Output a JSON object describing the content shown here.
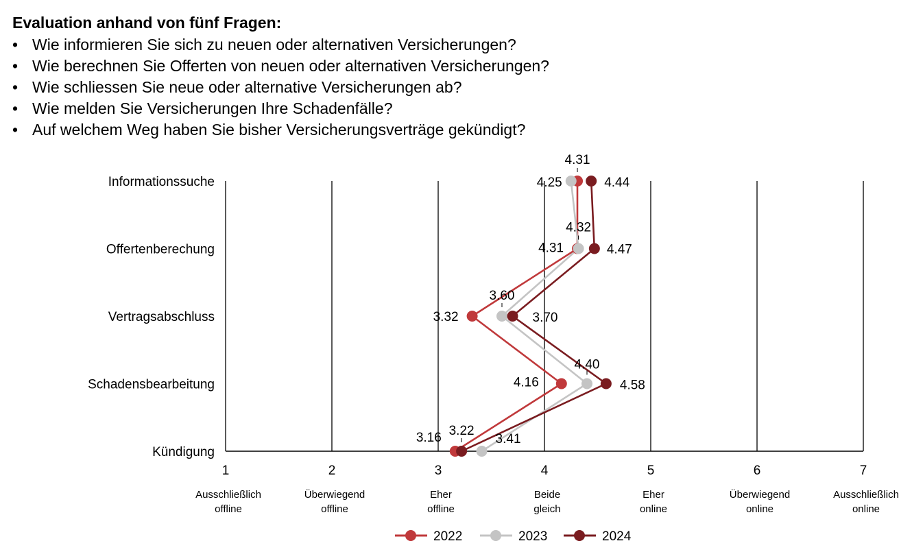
{
  "header": {
    "title": "Evaluation anhand von fünf Fragen:",
    "bullet_glyph": "•",
    "questions": [
      "Wie informieren Sie sich zu neuen oder alternativen Versicherungen?",
      "Wie berechnen Sie Offerten von neuen oder alternativen Versicherungen?",
      "Wie schliessen Sie neue oder alternative Versicherungen ab?",
      "Wie melden Sie Versicherungen Ihre Schadenfälle?",
      "Auf welchem Weg haben Sie bisher Versicherungsverträge gekündigt?"
    ]
  },
  "chart_data": {
    "type": "line",
    "orientation": "horizontal-dot-plot",
    "categories": [
      "Informationssuche",
      "Offertenberechung",
      "Vertragsabschluss",
      "Schadensbearbeitung",
      "Kündigung"
    ],
    "xlim": [
      1,
      7
    ],
    "x_ticks": [
      1,
      2,
      3,
      4,
      5,
      6,
      7
    ],
    "x_tick_descriptions": [
      [
        "Ausschließlich",
        "offline"
      ],
      [
        "Überwiegend",
        "offline"
      ],
      [
        "Eher",
        "offline"
      ],
      [
        "Beide",
        "gleich"
      ],
      [
        "Eher",
        "online"
      ],
      [
        "Überwiegend",
        "online"
      ],
      [
        "Ausschließlich",
        "online"
      ]
    ],
    "grid": true,
    "legend_position": "bottom-center",
    "series": [
      {
        "name": "2022",
        "color": "#c0393b",
        "values": [
          4.31,
          4.31,
          3.32,
          4.16,
          3.16
        ],
        "labels": [
          "4.31",
          "4.31",
          "3.32",
          "4.16",
          "3.16"
        ]
      },
      {
        "name": "2023",
        "color": "#c4c4c4",
        "values": [
          4.25,
          4.32,
          3.6,
          4.4,
          3.41
        ],
        "labels": [
          "4.25",
          "4.32",
          "3.60",
          "4.40",
          "3.41"
        ]
      },
      {
        "name": "2024",
        "color": "#7a1c20",
        "values": [
          4.44,
          4.47,
          3.7,
          4.58,
          3.22
        ],
        "labels": [
          "4.44",
          "4.47",
          "3.70",
          "4.58",
          "3.22"
        ]
      }
    ]
  }
}
